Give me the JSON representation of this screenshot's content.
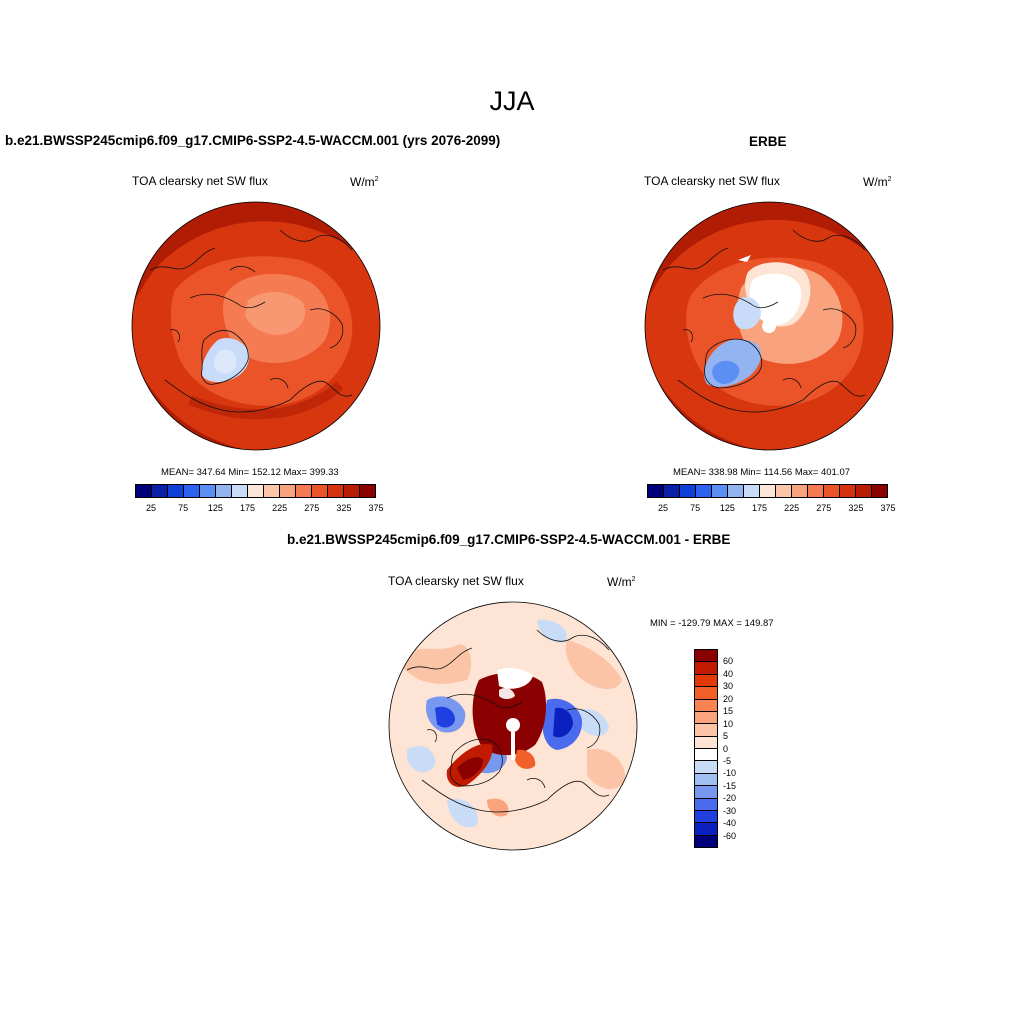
{
  "figure": {
    "season": "JJA"
  },
  "panels": {
    "left": {
      "title": "b.e21.BWSSP245cmip6.f09_g17.CMIP6-SSP2-4.5-WACCM.001 (yrs 2076-2099)",
      "variable": "TOA clearsky net SW flux",
      "units_base": "W/m",
      "units_exp": "2",
      "stats": "MEAN= 347.64  Min= 152.12  Max= 399.33"
    },
    "right": {
      "title": "ERBE",
      "variable": "TOA clearsky net SW flux",
      "units_base": "W/m",
      "units_exp": "2",
      "stats": "MEAN= 338.98  Min= 114.56  Max= 401.07"
    },
    "diff": {
      "title": "b.e21.BWSSP245cmip6.f09_g17.CMIP6-SSP2-4.5-WACCM.001 - ERBE",
      "variable": "TOA clearsky net SW flux",
      "units_base": "W/m",
      "units_exp": "2",
      "stats": "MIN = -129.79 MAX = 149.87"
    }
  },
  "colorbars": {
    "absolute": {
      "colors": [
        "#00007a",
        "#0a1fa6",
        "#0e3fd6",
        "#2d63f0",
        "#5b8ff3",
        "#93b4f0",
        "#c8dcfa",
        "#fbe6d8",
        "#fcc6aa",
        "#f9a27e",
        "#f47b52",
        "#ea5428",
        "#d5330f",
        "#b71c05",
        "#8b0000"
      ],
      "labels": [
        "25",
        "75",
        "125",
        "175",
        "225",
        "275",
        "325",
        "375"
      ]
    },
    "difference": {
      "colors_top_to_bottom": [
        "#8b0000",
        "#c01a00",
        "#e23a08",
        "#f2602a",
        "#f78452",
        "#faa37c",
        "#fcc4a6",
        "#fde4d4",
        "#ffffff",
        "#c9dcf7",
        "#9fbef2",
        "#7898ef",
        "#4a6bed",
        "#1f3fe0",
        "#0a20bf",
        "#00007a"
      ],
      "labels_top_to_bottom": [
        "60",
        "40",
        "30",
        "20",
        "15",
        "10",
        "5",
        "0",
        "-5",
        "-10",
        "-15",
        "-20",
        "-30",
        "-40",
        "-60"
      ]
    }
  }
}
